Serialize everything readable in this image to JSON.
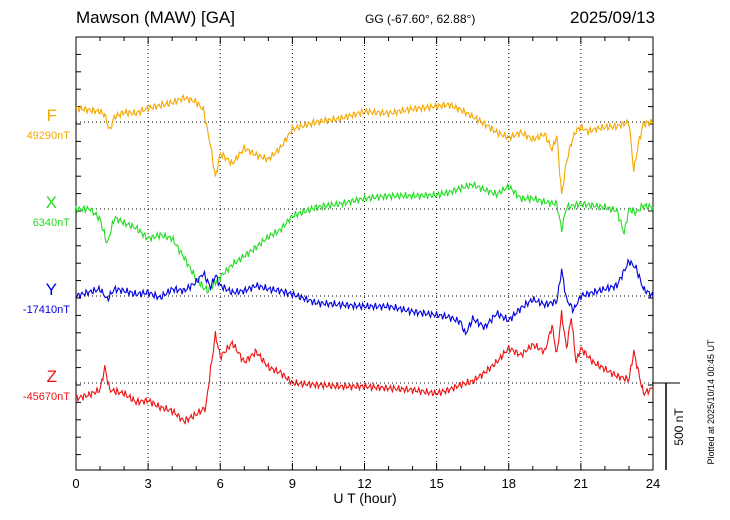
{
  "header": {
    "station": "Mawson (MAW)  [GA]",
    "coords": "GG (-67.60°,  62.88°)",
    "date": "2025/09/13"
  },
  "plotted_note": "Plotted at 2025/10/14 00:45 UT",
  "chart_data": {
    "type": "line",
    "xlabel": "U T (hour)",
    "xlim": [
      0,
      24
    ],
    "xticks": [
      0,
      3,
      6,
      9,
      12,
      15,
      18,
      21,
      24
    ],
    "tick_labels": [
      "0",
      "3",
      "6",
      "9",
      "12",
      "15",
      "18",
      "21",
      "24"
    ],
    "scale_bar": {
      "label": "500 nT",
      "value_nT": 500
    },
    "series": [
      {
        "name": "F",
        "baseline_label": "49290nT",
        "baseline_nT": 49290,
        "color": "#f5a800",
        "points": [
          [
            0,
            80
          ],
          [
            0.5,
            70
          ],
          [
            1.0,
            60
          ],
          [
            1.2,
            40
          ],
          [
            1.4,
            -50
          ],
          [
            1.6,
            30
          ],
          [
            2.0,
            55
          ],
          [
            2.5,
            50
          ],
          [
            3.0,
            80
          ],
          [
            3.5,
            95
          ],
          [
            4.0,
            110
          ],
          [
            4.5,
            140
          ],
          [
            5.0,
            115
          ],
          [
            5.3,
            70
          ],
          [
            5.6,
            -140
          ],
          [
            5.8,
            -320
          ],
          [
            6.0,
            -180
          ],
          [
            6.5,
            -240
          ],
          [
            7.0,
            -150
          ],
          [
            7.5,
            -190
          ],
          [
            8.0,
            -215
          ],
          [
            8.5,
            -150
          ],
          [
            9.0,
            -40
          ],
          [
            10,
            0
          ],
          [
            11,
            20
          ],
          [
            12,
            60
          ],
          [
            13,
            50
          ],
          [
            14,
            75
          ],
          [
            15,
            90
          ],
          [
            15.5,
            100
          ],
          [
            16,
            70
          ],
          [
            16.5,
            30
          ],
          [
            17,
            -10
          ],
          [
            17.5,
            -60
          ],
          [
            18,
            -90
          ],
          [
            18.5,
            -60
          ],
          [
            19,
            -100
          ],
          [
            19.5,
            -70
          ],
          [
            19.8,
            -160
          ],
          [
            20.0,
            -80
          ],
          [
            20.2,
            -420
          ],
          [
            20.4,
            -230
          ],
          [
            20.6,
            -120
          ],
          [
            20.8,
            -50
          ],
          [
            21.0,
            -30
          ],
          [
            21.3,
            -55
          ],
          [
            21.6,
            -40
          ],
          [
            22,
            -30
          ],
          [
            22.5,
            -25
          ],
          [
            23,
            0
          ],
          [
            23.2,
            -280
          ],
          [
            23.4,
            -120
          ],
          [
            23.6,
            -10
          ],
          [
            24,
            0
          ]
        ]
      },
      {
        "name": "X",
        "baseline_label": "6340nT",
        "baseline_nT": 6340,
        "color": "#22dd22",
        "points": [
          [
            0,
            0
          ],
          [
            0.6,
            0
          ],
          [
            1.0,
            -60
          ],
          [
            1.3,
            -200
          ],
          [
            1.6,
            -50
          ],
          [
            2.0,
            -80
          ],
          [
            2.5,
            -110
          ],
          [
            3.0,
            -170
          ],
          [
            3.5,
            -150
          ],
          [
            4.0,
            -170
          ],
          [
            4.5,
            -280
          ],
          [
            5.0,
            -400
          ],
          [
            5.3,
            -450
          ],
          [
            5.5,
            -470
          ],
          [
            5.8,
            -420
          ],
          [
            6.0,
            -390
          ],
          [
            6.5,
            -320
          ],
          [
            7.0,
            -270
          ],
          [
            7.5,
            -220
          ],
          [
            8.0,
            -160
          ],
          [
            8.5,
            -120
          ],
          [
            9.0,
            -40
          ],
          [
            10,
            10
          ],
          [
            11,
            30
          ],
          [
            12,
            60
          ],
          [
            13,
            75
          ],
          [
            14,
            75
          ],
          [
            15,
            80
          ],
          [
            15.5,
            95
          ],
          [
            16,
            120
          ],
          [
            16.5,
            140
          ],
          [
            17,
            110
          ],
          [
            17.5,
            85
          ],
          [
            18,
            130
          ],
          [
            18.5,
            60
          ],
          [
            19,
            60
          ],
          [
            19.5,
            40
          ],
          [
            20.0,
            30
          ],
          [
            20.2,
            -120
          ],
          [
            20.4,
            10
          ],
          [
            21,
            30
          ],
          [
            21.5,
            20
          ],
          [
            22,
            10
          ],
          [
            22.5,
            -10
          ],
          [
            22.8,
            -140
          ],
          [
            23,
            0
          ],
          [
            23.3,
            -20
          ],
          [
            23.6,
            20
          ],
          [
            24,
            10
          ]
        ]
      },
      {
        "name": "Y",
        "baseline_label": "-17410nT",
        "baseline_nT": -17410,
        "color": "#0000dd",
        "points": [
          [
            0,
            0
          ],
          [
            0.5,
            20
          ],
          [
            1.0,
            40
          ],
          [
            1.3,
            -20
          ],
          [
            1.6,
            40
          ],
          [
            2.0,
            30
          ],
          [
            2.5,
            10
          ],
          [
            3.0,
            20
          ],
          [
            3.5,
            -10
          ],
          [
            4.0,
            40
          ],
          [
            4.5,
            30
          ],
          [
            5.0,
            80
          ],
          [
            5.3,
            130
          ],
          [
            5.6,
            50
          ],
          [
            5.8,
            120
          ],
          [
            6.0,
            60
          ],
          [
            6.5,
            20
          ],
          [
            7.0,
            30
          ],
          [
            7.5,
            60
          ],
          [
            8.0,
            40
          ],
          [
            8.5,
            30
          ],
          [
            9.0,
            10
          ],
          [
            10,
            -40
          ],
          [
            11,
            -50
          ],
          [
            12,
            -60
          ],
          [
            13,
            -60
          ],
          [
            14,
            -90
          ],
          [
            15,
            -110
          ],
          [
            15.5,
            -120
          ],
          [
            16,
            -150
          ],
          [
            16.2,
            -220
          ],
          [
            16.5,
            -130
          ],
          [
            17,
            -180
          ],
          [
            17.5,
            -100
          ],
          [
            18,
            -140
          ],
          [
            18.5,
            -70
          ],
          [
            19,
            -20
          ],
          [
            19.5,
            -50
          ],
          [
            20.0,
            -30
          ],
          [
            20.2,
            150
          ],
          [
            20.4,
            -20
          ],
          [
            20.7,
            -80
          ],
          [
            21,
            0
          ],
          [
            21.5,
            20
          ],
          [
            22,
            40
          ],
          [
            22.5,
            60
          ],
          [
            23,
            200
          ],
          [
            23.3,
            160
          ],
          [
            23.6,
            40
          ],
          [
            24,
            0
          ]
        ]
      },
      {
        "name": "Z",
        "baseline_label": "-45670nT",
        "baseline_nT": -45670,
        "color": "#ee1111",
        "points": [
          [
            0,
            -90
          ],
          [
            0.5,
            -70
          ],
          [
            1.0,
            -40
          ],
          [
            1.2,
            90
          ],
          [
            1.4,
            -40
          ],
          [
            2.0,
            -60
          ],
          [
            2.5,
            -110
          ],
          [
            3.0,
            -100
          ],
          [
            3.5,
            -140
          ],
          [
            4.0,
            -160
          ],
          [
            4.5,
            -220
          ],
          [
            5.0,
            -180
          ],
          [
            5.4,
            -140
          ],
          [
            5.6,
            80
          ],
          [
            5.8,
            280
          ],
          [
            6.0,
            150
          ],
          [
            6.5,
            230
          ],
          [
            7.0,
            120
          ],
          [
            7.5,
            180
          ],
          [
            8.0,
            90
          ],
          [
            8.5,
            60
          ],
          [
            9.0,
            0
          ],
          [
            10,
            -10
          ],
          [
            11,
            -20
          ],
          [
            12,
            -20
          ],
          [
            13,
            -30
          ],
          [
            14,
            -40
          ],
          [
            15,
            -60
          ],
          [
            15.5,
            -40
          ],
          [
            16,
            -10
          ],
          [
            16.5,
            10
          ],
          [
            17,
            60
          ],
          [
            17.5,
            120
          ],
          [
            18,
            200
          ],
          [
            18.5,
            160
          ],
          [
            19,
            220
          ],
          [
            19.5,
            180
          ],
          [
            19.8,
            330
          ],
          [
            20.0,
            160
          ],
          [
            20.2,
            400
          ],
          [
            20.4,
            200
          ],
          [
            20.6,
            380
          ],
          [
            20.8,
            120
          ],
          [
            21,
            200
          ],
          [
            21.5,
            120
          ],
          [
            22,
            80
          ],
          [
            22.5,
            40
          ],
          [
            23,
            20
          ],
          [
            23.2,
            180
          ],
          [
            23.4,
            60
          ],
          [
            23.6,
            -60
          ],
          [
            24,
            -30
          ]
        ]
      }
    ]
  }
}
